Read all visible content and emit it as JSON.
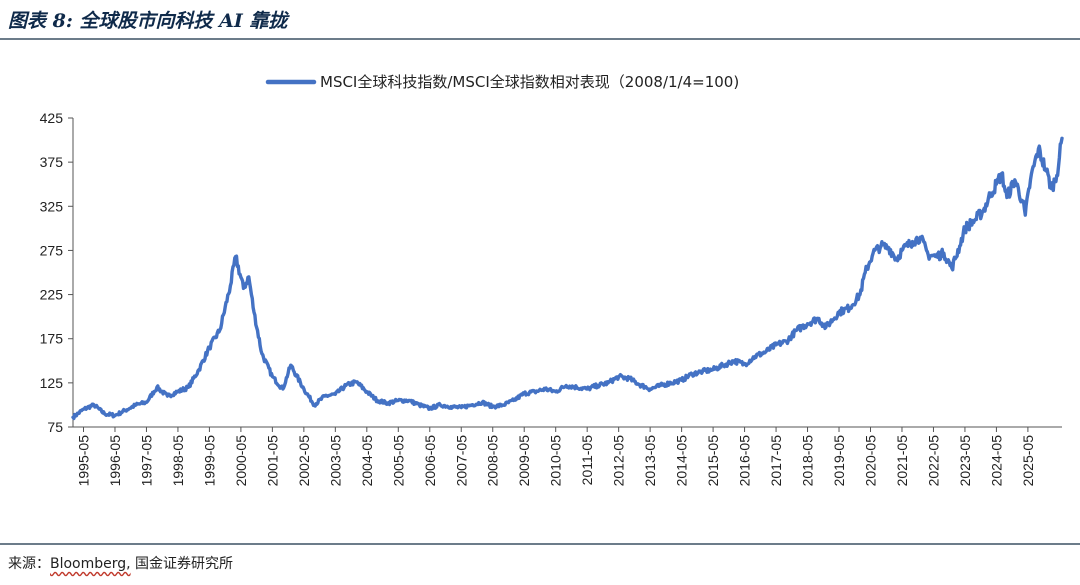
{
  "figure": {
    "title": "图表 8:  全球股市向科技 AI 靠拢",
    "source_prefix": "来源：",
    "source_brand": "Bloomberg,",
    "source_rest": " 国金证券研究所"
  },
  "colors": {
    "line": "#4472c4",
    "rule": "#6c7c8a",
    "axis": "#555555"
  },
  "chart_data": {
    "type": "line",
    "title": "",
    "xlabel": "",
    "ylabel": "",
    "legend": {
      "position": "top-center"
    },
    "grid": false,
    "ylim": [
      75,
      425
    ],
    "yticks": [
      75,
      125,
      175,
      225,
      275,
      325,
      375,
      425
    ],
    "xticks": [
      "1995-05",
      "1996-05",
      "1997-05",
      "1998-05",
      "1999-05",
      "2000-05",
      "2001-05",
      "2002-05",
      "2003-05",
      "2004-05",
      "2005-05",
      "2006-05",
      "2007-05",
      "2008-05",
      "2009-05",
      "2010-05",
      "2011-05",
      "2012-05",
      "2013-05",
      "2014-05",
      "2015-05",
      "2016-05",
      "2017-05",
      "2018-05",
      "2019-05",
      "2020-05",
      "2021-05",
      "2022-05",
      "2023-05",
      "2024-05",
      "2025-05"
    ],
    "xrange": [
      "1995-01",
      "2026-06"
    ],
    "series": [
      {
        "name": "MSCI全球科技指数/MSCI全球指数相对表现（2008/1/4=100)",
        "points": [
          [
            "1995-01",
            86
          ],
          [
            "1995-05",
            95
          ],
          [
            "1995-09",
            100
          ],
          [
            "1996-01",
            90
          ],
          [
            "1996-05",
            88
          ],
          [
            "1996-09",
            94
          ],
          [
            "1997-01",
            100
          ],
          [
            "1997-05",
            103
          ],
          [
            "1997-09",
            120
          ],
          [
            "1998-01",
            110
          ],
          [
            "1998-05",
            115
          ],
          [
            "1998-09",
            120
          ],
          [
            "1999-01",
            140
          ],
          [
            "1999-05",
            165
          ],
          [
            "1999-09",
            185
          ],
          [
            "2000-01",
            235
          ],
          [
            "2000-03",
            268
          ],
          [
            "2000-06",
            232
          ],
          [
            "2000-08",
            245
          ],
          [
            "2000-10",
            205
          ],
          [
            "2001-01",
            158
          ],
          [
            "2001-05",
            132
          ],
          [
            "2001-09",
            118
          ],
          [
            "2001-12",
            145
          ],
          [
            "2002-05",
            118
          ],
          [
            "2002-09",
            100
          ],
          [
            "2003-01",
            110
          ],
          [
            "2003-05",
            112
          ],
          [
            "2003-09",
            122
          ],
          [
            "2004-01",
            126
          ],
          [
            "2004-05",
            115
          ],
          [
            "2004-09",
            105
          ],
          [
            "2005-01",
            102
          ],
          [
            "2005-05",
            105
          ],
          [
            "2005-09",
            105
          ],
          [
            "2006-01",
            100
          ],
          [
            "2006-05",
            96
          ],
          [
            "2006-09",
            100
          ],
          [
            "2007-01",
            98
          ],
          [
            "2007-05",
            97
          ],
          [
            "2007-09",
            100
          ],
          [
            "2008-01",
            103
          ],
          [
            "2008-05",
            98
          ],
          [
            "2008-09",
            100
          ],
          [
            "2009-01",
            105
          ],
          [
            "2009-05",
            113
          ],
          [
            "2009-09",
            115
          ],
          [
            "2010-01",
            118
          ],
          [
            "2010-05",
            115
          ],
          [
            "2010-09",
            122
          ],
          [
            "2011-01",
            120
          ],
          [
            "2011-05",
            118
          ],
          [
            "2011-09",
            122
          ],
          [
            "2012-01",
            125
          ],
          [
            "2012-05",
            132
          ],
          [
            "2012-09",
            130
          ],
          [
            "2013-01",
            123
          ],
          [
            "2013-05",
            118
          ],
          [
            "2013-09",
            122
          ],
          [
            "2014-01",
            125
          ],
          [
            "2014-05",
            128
          ],
          [
            "2014-09",
            135
          ],
          [
            "2015-01",
            138
          ],
          [
            "2015-05",
            140
          ],
          [
            "2015-09",
            145
          ],
          [
            "2016-01",
            150
          ],
          [
            "2016-05",
            146
          ],
          [
            "2016-09",
            155
          ],
          [
            "2017-01",
            160
          ],
          [
            "2017-05",
            168
          ],
          [
            "2017-09",
            172
          ],
          [
            "2018-01",
            185
          ],
          [
            "2018-05",
            192
          ],
          [
            "2018-09",
            198
          ],
          [
            "2018-12",
            188
          ],
          [
            "2019-05",
            205
          ],
          [
            "2019-09",
            210
          ],
          [
            "2020-01",
            225
          ],
          [
            "2020-03",
            250
          ],
          [
            "2020-06",
            272
          ],
          [
            "2020-09",
            280
          ],
          [
            "2020-12",
            278
          ],
          [
            "2021-03",
            265
          ],
          [
            "2021-05",
            275
          ],
          [
            "2021-09",
            285
          ],
          [
            "2021-12",
            290
          ],
          [
            "2022-03",
            270
          ],
          [
            "2022-06",
            268
          ],
          [
            "2022-09",
            272
          ],
          [
            "2022-12",
            255
          ],
          [
            "2023-03",
            280
          ],
          [
            "2023-05",
            300
          ],
          [
            "2023-09",
            310
          ],
          [
            "2023-12",
            320
          ],
          [
            "2024-03",
            340
          ],
          [
            "2024-05",
            350
          ],
          [
            "2024-07",
            362
          ],
          [
            "2024-09",
            335
          ],
          [
            "2024-12",
            355
          ],
          [
            "2025-03",
            330
          ],
          [
            "2025-04",
            315
          ],
          [
            "2025-06",
            355
          ],
          [
            "2025-09",
            390
          ],
          [
            "2025-12",
            365
          ],
          [
            "2026-02",
            345
          ],
          [
            "2026-04",
            360
          ],
          [
            "2026-06",
            402
          ]
        ]
      }
    ]
  }
}
